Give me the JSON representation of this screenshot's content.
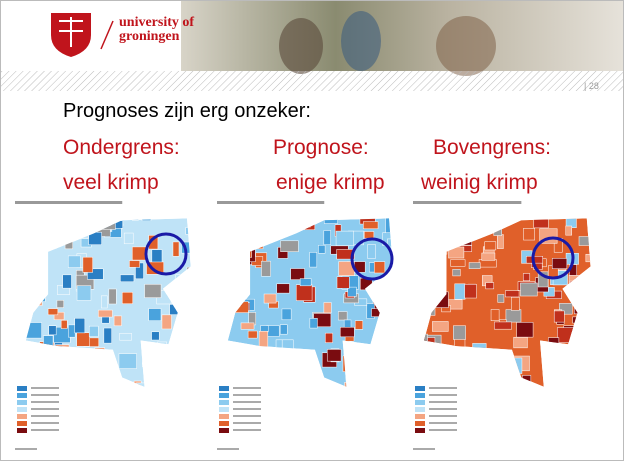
{
  "header": {
    "logo_line1": "university of",
    "logo_line2": "groningen"
  },
  "page_number": "| 28",
  "title": "Prognoses zijn erg onzeker:",
  "columns": [
    {
      "line1": "Ondergrens:",
      "line2": "veel krimp"
    },
    {
      "line1": "Prognose:",
      "line2": "enige krimp"
    },
    {
      "line1": "Bovengrens:",
      "line2": "weinig krimp"
    }
  ]
}
